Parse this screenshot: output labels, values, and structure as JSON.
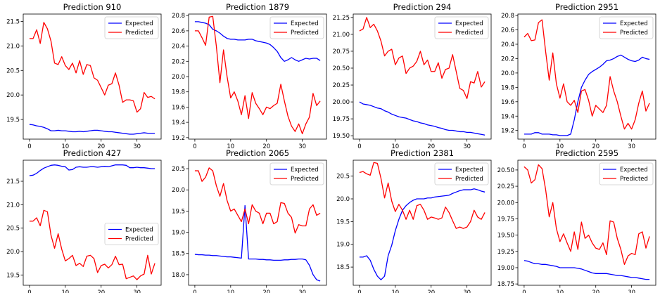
{
  "colors": {
    "expected": "#0000ff",
    "predicted": "#ff0000",
    "axis": "#000000"
  },
  "chart_data": [
    {
      "type": "line",
      "title": "Prediction 910",
      "xlim": [
        -1.75,
        36.75
      ],
      "ylim": [
        19.1,
        21.65
      ],
      "xticks": [
        0,
        10,
        20,
        30
      ],
      "yticks": [
        19.5,
        20.0,
        20.5,
        21.0,
        21.5
      ],
      "ytick_labels": [
        "19.5",
        "20.0",
        "20.5",
        "21.0",
        "21.5"
      ],
      "legend": "upper right",
      "series": [
        {
          "name": "Expected",
          "color": "#0000ff",
          "values": [
            19.4,
            19.39,
            19.37,
            19.36,
            19.34,
            19.31,
            19.27,
            19.27,
            19.28,
            19.27,
            19.27,
            19.26,
            19.25,
            19.25,
            19.26,
            19.25,
            19.26,
            19.27,
            19.28,
            19.28,
            19.27,
            19.26,
            19.25,
            19.25,
            19.24,
            19.23,
            19.22,
            19.21,
            19.2,
            19.2,
            19.21,
            19.22,
            19.23,
            19.22,
            19.22,
            19.22
          ]
        },
        {
          "name": "Predicted",
          "color": "#ff0000",
          "values": [
            21.15,
            21.15,
            21.33,
            21.05,
            21.48,
            21.35,
            21.1,
            20.65,
            20.62,
            20.78,
            20.6,
            20.52,
            20.65,
            20.45,
            20.7,
            20.42,
            20.62,
            20.6,
            20.35,
            20.3,
            20.15,
            20.0,
            20.2,
            20.23,
            20.45,
            20.2,
            19.85,
            19.9,
            19.9,
            19.88,
            19.65,
            19.72,
            20.05,
            19.95,
            19.97,
            19.92
          ]
        }
      ]
    },
    {
      "type": "line",
      "title": "Prediction 1879",
      "xlim": [
        -1.75,
        36.75
      ],
      "ylim": [
        19.18,
        20.82
      ],
      "xticks": [
        0,
        10,
        20,
        30
      ],
      "yticks": [
        19.2,
        19.4,
        19.6,
        19.8,
        20.0,
        20.2,
        20.4,
        20.6,
        20.8
      ],
      "ytick_labels": [
        "19.2",
        "19.4",
        "19.6",
        "19.8",
        "20.0",
        "20.2",
        "20.4",
        "20.6",
        "20.8"
      ],
      "legend": "upper right",
      "series": [
        {
          "name": "Expected",
          "color": "#0000ff",
          "values": [
            20.72,
            20.72,
            20.71,
            20.7,
            20.68,
            20.62,
            20.6,
            20.57,
            20.53,
            20.5,
            20.49,
            20.49,
            20.48,
            20.48,
            20.48,
            20.49,
            20.49,
            20.47,
            20.46,
            20.45,
            20.44,
            20.42,
            20.38,
            20.33,
            20.25,
            20.2,
            20.22,
            20.25,
            20.22,
            20.2,
            20.22,
            20.24,
            20.23,
            20.24,
            20.24,
            20.21
          ]
        },
        {
          "name": "Predicted",
          "color": "#ff0000",
          "values": [
            20.6,
            20.6,
            20.51,
            20.41,
            20.78,
            20.79,
            20.4,
            19.92,
            20.35,
            20.0,
            19.72,
            19.8,
            19.68,
            19.5,
            19.75,
            19.45,
            19.79,
            19.65,
            19.58,
            19.5,
            19.6,
            19.58,
            19.62,
            19.65,
            19.9,
            19.68,
            19.48,
            19.35,
            19.28,
            19.38,
            19.25,
            19.38,
            19.47,
            19.78,
            19.62,
            19.68
          ]
        }
      ]
    },
    {
      "type": "line",
      "title": "Prediction 294",
      "xlim": [
        -1.75,
        36.75
      ],
      "ylim": [
        19.45,
        21.3
      ],
      "xticks": [
        0,
        10,
        20,
        30
      ],
      "yticks": [
        19.5,
        19.75,
        20.0,
        20.25,
        20.5,
        20.75,
        21.0,
        21.25
      ],
      "ytick_labels": [
        "19.50",
        "19.75",
        "20.00",
        "20.25",
        "20.50",
        "20.75",
        "21.00",
        "21.25"
      ],
      "legend": "upper right",
      "series": [
        {
          "name": "Expected",
          "color": "#0000ff",
          "values": [
            20.0,
            19.97,
            19.96,
            19.95,
            19.93,
            19.91,
            19.9,
            19.87,
            19.85,
            19.82,
            19.8,
            19.78,
            19.77,
            19.76,
            19.74,
            19.72,
            19.71,
            19.69,
            19.68,
            19.66,
            19.65,
            19.64,
            19.62,
            19.61,
            19.59,
            19.58,
            19.58,
            19.57,
            19.56,
            19.56,
            19.55,
            19.55,
            19.54,
            19.53,
            19.52,
            19.51
          ]
        },
        {
          "name": "Predicted",
          "color": "#ff0000",
          "values": [
            21.05,
            21.08,
            21.25,
            21.1,
            21.15,
            21.05,
            20.9,
            20.68,
            20.75,
            20.78,
            20.55,
            20.65,
            20.68,
            20.42,
            20.5,
            20.53,
            20.6,
            20.75,
            20.55,
            20.62,
            20.45,
            20.45,
            20.58,
            20.35,
            20.48,
            20.5,
            20.7,
            20.45,
            20.2,
            20.17,
            20.05,
            20.3,
            20.28,
            20.45,
            20.22,
            20.3
          ]
        }
      ]
    },
    {
      "type": "line",
      "title": "Prediction 2951",
      "xlim": [
        -1.75,
        36.75
      ],
      "ylim": [
        19.08,
        20.82
      ],
      "xticks": [
        0,
        10,
        20,
        30
      ],
      "yticks": [
        19.2,
        19.4,
        19.6,
        19.8,
        20.0,
        20.2,
        20.4,
        20.6,
        20.8
      ],
      "ytick_labels": [
        "19.2",
        "19.4",
        "19.6",
        "19.8",
        "20.0",
        "20.2",
        "20.4",
        "20.6",
        "20.8"
      ],
      "legend": "upper right",
      "series": [
        {
          "name": "Expected",
          "color": "#0000ff",
          "values": [
            19.15,
            19.15,
            19.15,
            19.17,
            19.17,
            19.15,
            19.15,
            19.15,
            19.14,
            19.14,
            19.13,
            19.13,
            19.13,
            19.15,
            19.35,
            19.6,
            19.8,
            19.9,
            19.98,
            20.02,
            20.05,
            20.08,
            20.12,
            20.17,
            20.18,
            20.2,
            20.23,
            20.25,
            20.22,
            20.19,
            20.17,
            20.16,
            20.18,
            20.22,
            20.2,
            20.19
          ]
        },
        {
          "name": "Predicted",
          "color": "#ff0000",
          "values": [
            20.5,
            20.55,
            20.45,
            20.46,
            20.7,
            20.74,
            20.3,
            19.9,
            20.28,
            19.85,
            19.65,
            19.85,
            19.6,
            19.55,
            19.62,
            19.45,
            19.75,
            19.77,
            19.62,
            19.4,
            19.55,
            19.5,
            19.45,
            19.55,
            19.95,
            19.75,
            19.6,
            19.4,
            19.22,
            19.3,
            19.22,
            19.35,
            19.58,
            19.75,
            19.47,
            19.58
          ]
        }
      ]
    },
    {
      "type": "line",
      "title": "Prediction 427",
      "xlim": [
        -1.75,
        36.75
      ],
      "ylim": [
        19.28,
        21.95
      ],
      "xticks": [
        0,
        10,
        20,
        30
      ],
      "yticks": [
        19.5,
        20.0,
        20.5,
        21.0,
        21.5
      ],
      "ytick_labels": [
        "19.5",
        "20.0",
        "20.5",
        "21.0",
        "21.5"
      ],
      "legend": "center right",
      "series": [
        {
          "name": "Expected",
          "color": "#0000ff",
          "values": [
            21.62,
            21.63,
            21.67,
            21.73,
            21.78,
            21.81,
            21.84,
            21.85,
            21.84,
            21.82,
            21.81,
            21.74,
            21.75,
            21.8,
            21.81,
            21.8,
            21.8,
            21.81,
            21.81,
            21.8,
            21.81,
            21.82,
            21.81,
            21.83,
            21.85,
            21.85,
            21.85,
            21.84,
            21.79,
            21.79,
            21.8,
            21.79,
            21.79,
            21.78,
            21.77,
            21.77
          ]
        },
        {
          "name": "Predicted",
          "color": "#ff0000",
          "values": [
            20.65,
            20.65,
            20.72,
            20.55,
            20.88,
            20.85,
            20.35,
            20.07,
            20.38,
            20.05,
            19.8,
            19.85,
            19.92,
            19.7,
            19.75,
            19.68,
            19.9,
            19.92,
            19.85,
            19.55,
            19.7,
            19.73,
            19.65,
            19.72,
            19.9,
            19.72,
            19.73,
            19.42,
            19.45,
            19.48,
            19.4,
            19.48,
            19.52,
            19.92,
            19.52,
            19.75
          ]
        }
      ]
    },
    {
      "type": "line",
      "title": "Prediction 2065",
      "xlim": [
        -1.75,
        36.75
      ],
      "ylim": [
        17.75,
        20.7
      ],
      "xticks": [
        0,
        10,
        20,
        30
      ],
      "yticks": [
        18.0,
        18.5,
        19.0,
        19.5,
        20.0,
        20.5
      ],
      "ytick_labels": [
        "18.0",
        "18.5",
        "19.0",
        "19.5",
        "20.0",
        "20.5"
      ],
      "legend": "upper right",
      "series": [
        {
          "name": "Expected",
          "color": "#0000ff",
          "values": [
            18.48,
            18.47,
            18.47,
            18.46,
            18.46,
            18.45,
            18.45,
            18.44,
            18.43,
            18.42,
            18.42,
            18.41,
            18.4,
            18.39,
            19.63,
            18.37,
            18.37,
            18.37,
            18.36,
            18.36,
            18.35,
            18.35,
            18.34,
            18.34,
            18.34,
            18.35,
            18.35,
            18.36,
            18.36,
            18.37,
            18.37,
            18.35,
            18.22,
            18.0,
            17.88,
            17.85
          ]
        },
        {
          "name": "Predicted",
          "color": "#ff0000",
          "values": [
            20.45,
            20.45,
            20.2,
            20.3,
            20.52,
            20.45,
            20.1,
            19.85,
            20.15,
            19.75,
            19.5,
            19.55,
            19.4,
            19.25,
            19.55,
            19.2,
            19.65,
            19.5,
            19.45,
            19.2,
            19.45,
            19.45,
            19.2,
            19.25,
            19.7,
            19.68,
            19.45,
            19.35,
            18.98,
            19.18,
            19.15,
            19.15,
            19.55,
            19.65,
            19.4,
            19.45
          ]
        }
      ]
    },
    {
      "type": "line",
      "title": "Prediction 2381",
      "xlim": [
        -1.75,
        36.75
      ],
      "ylim": [
        18.1,
        20.85
      ],
      "xticks": [
        0,
        10,
        20,
        30
      ],
      "yticks": [
        18.5,
        19.0,
        19.5,
        20.0,
        20.5
      ],
      "ytick_labels": [
        "18.5",
        "19.0",
        "19.5",
        "20.0",
        "20.5"
      ],
      "legend": "upper right",
      "series": [
        {
          "name": "Expected",
          "color": "#0000ff",
          "values": [
            18.72,
            18.72,
            18.75,
            18.65,
            18.45,
            18.3,
            18.22,
            18.3,
            18.75,
            18.98,
            19.3,
            19.55,
            19.75,
            19.85,
            19.92,
            19.97,
            20.0,
            20.0,
            20.0,
            20.02,
            20.02,
            20.04,
            20.05,
            20.06,
            20.07,
            20.08,
            20.12,
            20.15,
            20.18,
            20.2,
            20.2,
            20.2,
            20.22,
            20.2,
            20.17,
            20.15
          ]
        },
        {
          "name": "Predicted",
          "color": "#ff0000",
          "values": [
            20.58,
            20.6,
            20.55,
            20.52,
            20.8,
            20.78,
            20.45,
            20.02,
            20.35,
            19.95,
            19.72,
            19.88,
            19.75,
            19.55,
            19.75,
            19.55,
            19.85,
            19.88,
            19.75,
            19.55,
            19.6,
            19.58,
            19.55,
            19.58,
            19.82,
            19.7,
            19.52,
            19.35,
            19.38,
            19.35,
            19.38,
            19.5,
            19.75,
            19.6,
            19.55,
            19.7
          ]
        }
      ]
    },
    {
      "type": "line",
      "title": "Prediction 2595",
      "xlim": [
        -1.75,
        36.75
      ],
      "ylim": [
        18.73,
        20.65
      ],
      "xticks": [
        0,
        10,
        20,
        30
      ],
      "yticks": [
        18.75,
        19.0,
        19.25,
        19.5,
        19.75,
        20.0,
        20.25,
        20.5
      ],
      "ytick_labels": [
        "18.75",
        "19.00",
        "19.25",
        "19.50",
        "19.75",
        "20.00",
        "20.25",
        "20.50"
      ],
      "legend": "upper right",
      "series": [
        {
          "name": "Expected",
          "color": "#0000ff",
          "values": [
            19.11,
            19.1,
            19.08,
            19.06,
            19.06,
            19.05,
            19.05,
            19.04,
            19.03,
            19.02,
            19.0,
            19.0,
            19.0,
            19.0,
            19.0,
            18.99,
            18.98,
            18.96,
            18.94,
            18.92,
            18.91,
            18.91,
            18.91,
            18.91,
            18.9,
            18.89,
            18.88,
            18.88,
            18.87,
            18.86,
            18.85,
            18.85,
            18.84,
            18.83,
            18.82,
            18.82
          ]
        },
        {
          "name": "Predicted",
          "color": "#ff0000",
          "values": [
            20.55,
            20.5,
            20.3,
            20.35,
            20.58,
            20.52,
            20.2,
            19.78,
            20.0,
            19.6,
            19.4,
            19.52,
            19.38,
            19.25,
            19.55,
            19.28,
            19.7,
            19.45,
            19.5,
            19.38,
            19.3,
            19.28,
            19.38,
            19.2,
            19.72,
            19.7,
            19.45,
            19.28,
            19.05,
            19.18,
            19.22,
            19.2,
            19.52,
            19.55,
            19.3,
            19.48
          ]
        }
      ]
    }
  ]
}
